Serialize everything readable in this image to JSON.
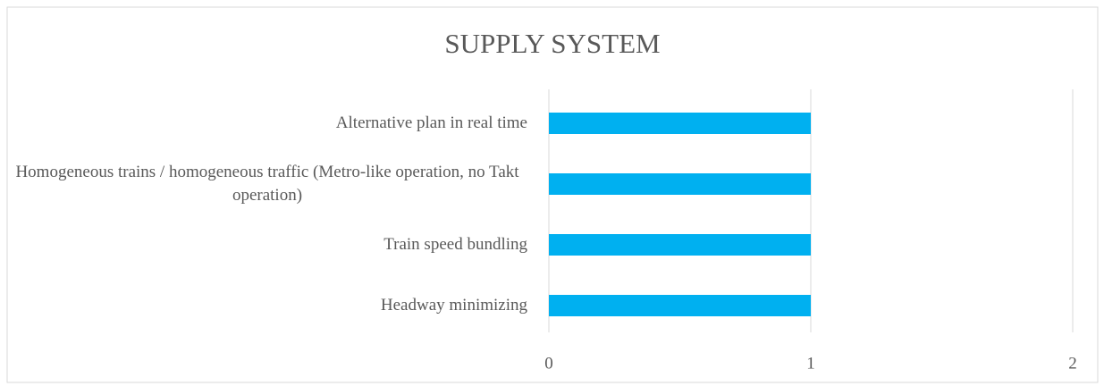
{
  "chart_data": {
    "type": "hbar",
    "title": "SUPPLY SYSTEM",
    "categories": [
      "Alternative plan in real time",
      "Homogeneous trains / homogeneous traffic (Metro-like operation, no Takt operation)",
      "Train speed bundling",
      "Headway minimizing"
    ],
    "values": [
      1,
      1,
      1,
      1
    ],
    "color": "#00b0f0",
    "xlim": [
      0,
      2
    ],
    "xticks": [
      0,
      1,
      2
    ],
    "grid": true
  }
}
